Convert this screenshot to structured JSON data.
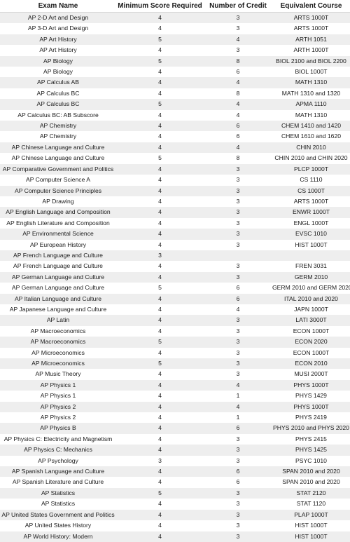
{
  "table": {
    "headers": [
      "Exam Name",
      "Minimum Score Required",
      "Number of Credit",
      "Equivalent Course"
    ],
    "rows": [
      [
        "AP 2-D Art and Design",
        "4",
        "3",
        "ARTS 1000T"
      ],
      [
        "AP 3-D Art and Design",
        "4",
        "3",
        "ARTS 1000T"
      ],
      [
        "AP Art History",
        "5",
        "4",
        "ARTH 1051"
      ],
      [
        "AP Art History",
        "4",
        "3",
        "ARTH 1000T"
      ],
      [
        "AP Biology",
        "5",
        "8",
        "BIOL 2100 and BIOL 2200"
      ],
      [
        "AP Biology",
        "4",
        "6",
        "BIOL 1000T"
      ],
      [
        "AP Calculus AB",
        "4",
        "4",
        "MATH 1310"
      ],
      [
        "AP Calculus BC",
        "4",
        "8",
        "MATH 1310 and 1320"
      ],
      [
        "AP Calculus BC",
        "5",
        "4",
        "APMA 1110"
      ],
      [
        "AP Calculus BC: AB Subscore",
        "4",
        "4",
        "MATH 1310"
      ],
      [
        "AP Chemistry",
        "4",
        "6",
        "CHEM 1410 and 1420"
      ],
      [
        "AP Chemistry",
        "4",
        "6",
        "CHEM 1610 and 1620"
      ],
      [
        "AP Chinese Language and Culture",
        "4",
        "4",
        "CHIN 2010"
      ],
      [
        "AP Chinese Language and Culture",
        "5",
        "8",
        "CHIN 2010 and CHIN 2020"
      ],
      [
        "AP Comparative Government and Politics",
        "4",
        "3",
        "PLCP 1000T"
      ],
      [
        "AP Computer Science A",
        "4",
        "3",
        "CS 1110"
      ],
      [
        "AP Computer Science Principles",
        "4",
        "3",
        "CS 1000T"
      ],
      [
        "AP Drawing",
        "4",
        "3",
        "ARTS 1000T"
      ],
      [
        "AP English Language and Composition",
        "4",
        "3",
        "ENWR 1000T"
      ],
      [
        "AP English Literature and Composition",
        "4",
        "3",
        "ENGL 1000T"
      ],
      [
        "AP Environmental Science",
        "4",
        "3",
        "EVSC 1010"
      ],
      [
        "AP European History",
        "4",
        "3",
        "HIST 1000T"
      ],
      [
        "AP French Language and Culture",
        "3",
        "",
        ""
      ],
      [
        "AP French Language and Culture",
        "4",
        "3",
        "FREN 3031"
      ],
      [
        "AP German Language and Culture",
        "4",
        "3",
        "GERM 2010"
      ],
      [
        "AP German Language and Culture",
        "5",
        "6",
        "GERM 2010 and GERM 2020"
      ],
      [
        "AP Italian Language and Culture",
        "4",
        "6",
        "ITAL 2010 and 2020"
      ],
      [
        "AP Japanese Language and Culture",
        "4",
        "4",
        "JAPN 1000T"
      ],
      [
        "AP Latin",
        "4",
        "3",
        "LATI 3000T"
      ],
      [
        "AP Macroeconomics",
        "4",
        "3",
        "ECON 1000T"
      ],
      [
        "AP Macroeconomics",
        "5",
        "3",
        "ECON 2020"
      ],
      [
        "AP Microeconomics",
        "4",
        "3",
        "ECON 1000T"
      ],
      [
        "AP Microeconomics",
        "5",
        "3",
        "ECON 2010"
      ],
      [
        "AP Music Theory",
        "4",
        "3",
        "MUSI 2000T"
      ],
      [
        "AP Physics 1",
        "4",
        "4",
        "PHYS 1000T"
      ],
      [
        "AP Physics 1",
        "4",
        "1",
        "PHYS 1429"
      ],
      [
        "AP Physics 2",
        "4",
        "4",
        "PHYS 1000T"
      ],
      [
        "AP Physics 2",
        "4",
        "1",
        "PHYS 2419"
      ],
      [
        "AP Physics B",
        "4",
        "6",
        "PHYS 2010 and PHYS 2020"
      ],
      [
        "AP Physics C: Electricity and Magnetism",
        "4",
        "3",
        "PHYS 2415"
      ],
      [
        "AP Physics C: Mechanics",
        "4",
        "3",
        "PHYS 1425"
      ],
      [
        "AP Psychology",
        "3",
        "3",
        "PSYC 1010"
      ],
      [
        "AP Spanish Language and Culture",
        "4",
        "6",
        "SPAN 2010 and 2020"
      ],
      [
        "AP Spanish Literature and Culture",
        "4",
        "6",
        "SPAN 2010 and 2020"
      ],
      [
        "AP Statistics",
        "5",
        "3",
        "STAT 2120"
      ],
      [
        "AP Statistics",
        "4",
        "3",
        "STAT 1120"
      ],
      [
        "AP United States Government and Politics",
        "4",
        "3",
        "PLAP 1000T"
      ],
      [
        "AP United States History",
        "4",
        "3",
        "HIST 1000T"
      ],
      [
        "AP World History: Modern",
        "4",
        "3",
        "HIST 1000T"
      ]
    ]
  }
}
